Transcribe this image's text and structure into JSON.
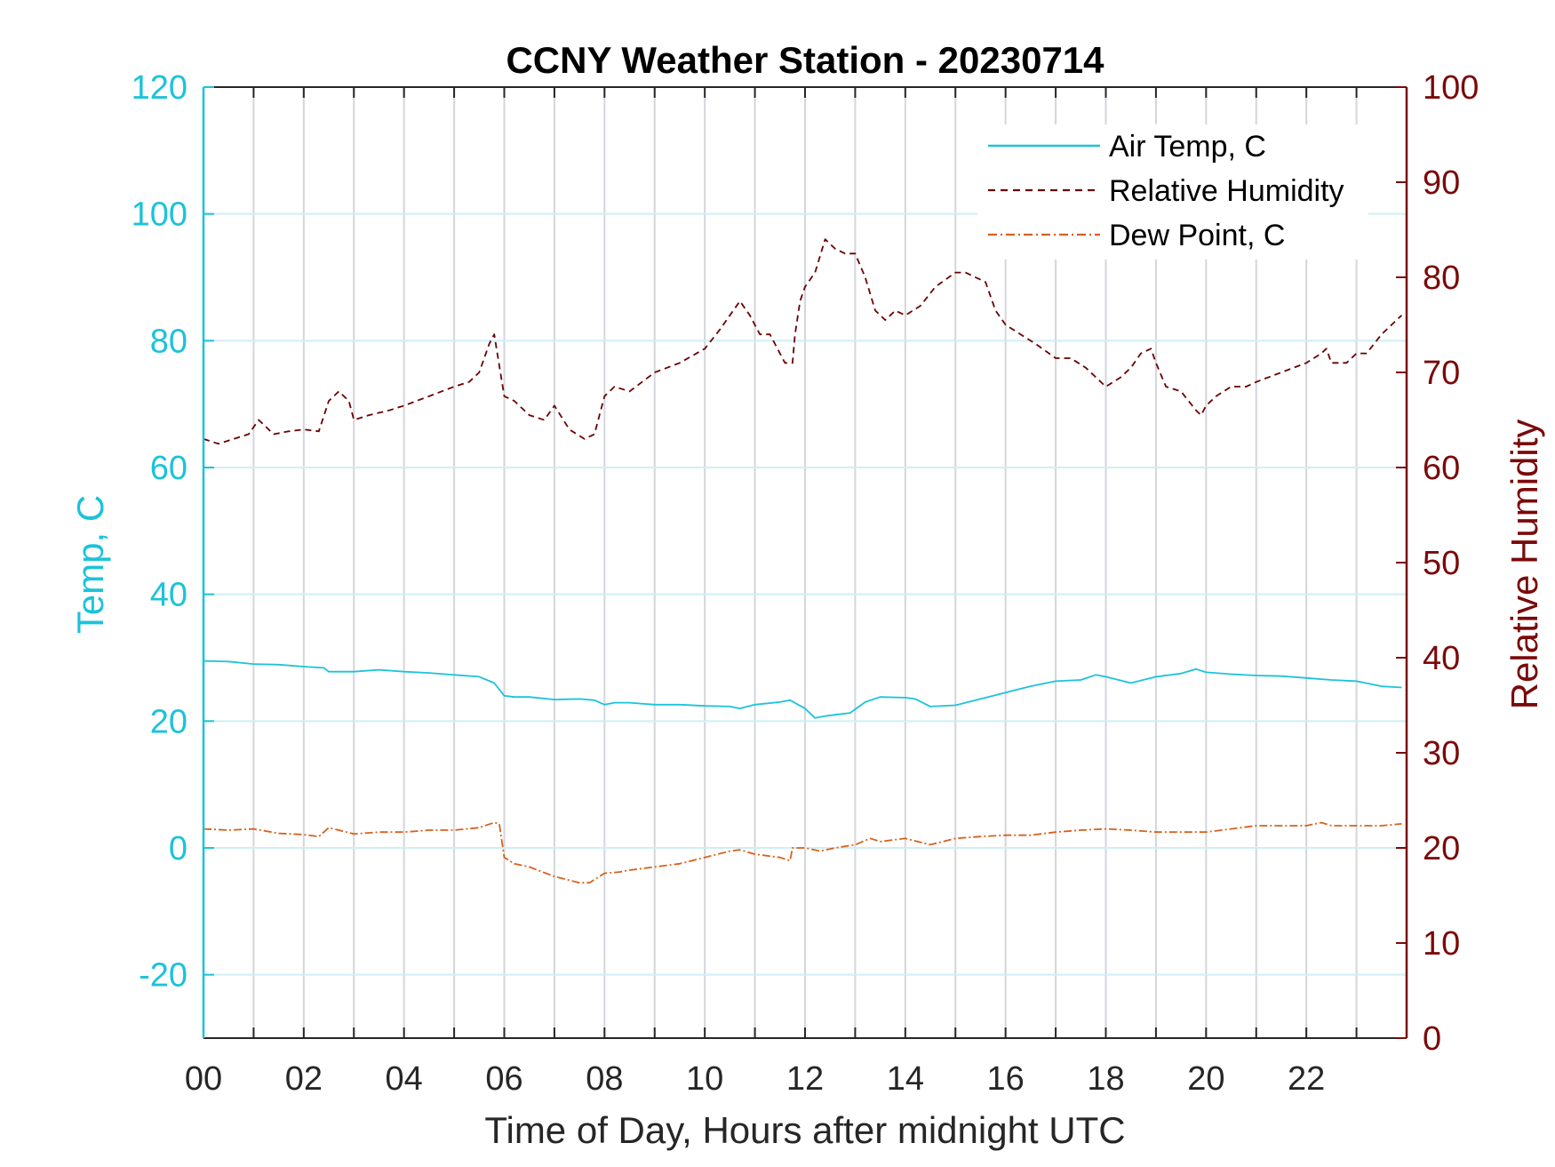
{
  "chart_data": {
    "type": "line",
    "title": "CCNY Weather Station - 20230714",
    "xlabel": "Time of Day, Hours after midnight UTC",
    "ylabel_left": "Temp, C",
    "ylabel_right": "Relative Humidity",
    "xlim": [
      0,
      24
    ],
    "ylim_left": [
      -30,
      120
    ],
    "ylim_right": [
      0,
      100
    ],
    "x_ticks": [
      {
        "value": 0,
        "label": "00"
      },
      {
        "value": 2,
        "label": "02"
      },
      {
        "value": 4,
        "label": "04"
      },
      {
        "value": 6,
        "label": "06"
      },
      {
        "value": 8,
        "label": "08"
      },
      {
        "value": 10,
        "label": "10"
      },
      {
        "value": 12,
        "label": "12"
      },
      {
        "value": 14,
        "label": "14"
      },
      {
        "value": 16,
        "label": "16"
      },
      {
        "value": 18,
        "label": "18"
      },
      {
        "value": 20,
        "label": "20"
      },
      {
        "value": 22,
        "label": "22"
      }
    ],
    "y_ticks_left": [
      {
        "value": -20,
        "label": "-20"
      },
      {
        "value": 0,
        "label": "0"
      },
      {
        "value": 20,
        "label": "20"
      },
      {
        "value": 40,
        "label": "40"
      },
      {
        "value": 60,
        "label": "60"
      },
      {
        "value": 80,
        "label": "80"
      },
      {
        "value": 100,
        "label": "100"
      },
      {
        "value": 120,
        "label": "120"
      }
    ],
    "y_ticks_right": [
      {
        "value": 0,
        "label": "0"
      },
      {
        "value": 10,
        "label": "10"
      },
      {
        "value": 20,
        "label": "20"
      },
      {
        "value": 30,
        "label": "30"
      },
      {
        "value": 40,
        "label": "40"
      },
      {
        "value": 50,
        "label": "50"
      },
      {
        "value": 60,
        "label": "60"
      },
      {
        "value": 70,
        "label": "70"
      },
      {
        "value": 80,
        "label": "80"
      },
      {
        "value": 90,
        "label": "90"
      },
      {
        "value": 100,
        "label": "100"
      }
    ],
    "grid": true,
    "legend_position": "top-right",
    "colors": {
      "left_axis": "#1bc3d9",
      "right_axis": "#7a0a0a",
      "air_temp": "#1bc3d9",
      "relative_humidity": "#6b0000",
      "dew_point": "#d9601b",
      "vertical_grid": "#d3d6da",
      "horizontal_grid": "#cfeff5"
    },
    "series": [
      {
        "name": "Air Temp, C",
        "axis": "left",
        "style": "solid",
        "x": [
          0,
          0.5,
          1,
          1.5,
          2,
          2.4,
          2.5,
          3,
          3.5,
          4,
          4.5,
          5,
          5.5,
          5.8,
          6,
          6.2,
          6.5,
          7,
          7.5,
          7.8,
          8,
          8.2,
          8.5,
          9,
          9.5,
          10,
          10.5,
          10.7,
          11,
          11.5,
          11.7,
          12,
          12.2,
          12.4,
          12.6,
          12.9,
          13.2,
          13.5,
          14,
          14.2,
          14.5,
          15,
          15.5,
          16,
          16.5,
          17,
          17.5,
          17.8,
          18,
          18.5,
          19,
          19.5,
          19.8,
          20,
          20.5,
          21,
          21.5,
          22,
          22.5,
          23,
          23.5,
          23.9
        ],
        "values": [
          29.5,
          29.4,
          29,
          28.9,
          28.6,
          28.4,
          27.8,
          27.8,
          28.1,
          27.8,
          27.6,
          27.3,
          27,
          26,
          24,
          23.8,
          23.8,
          23.4,
          23.5,
          23.3,
          22.6,
          22.9,
          22.9,
          22.6,
          22.6,
          22.4,
          22.3,
          22,
          22.6,
          23,
          23.3,
          22,
          20.5,
          20.8,
          21,
          21.3,
          23,
          23.8,
          23.7,
          23.5,
          22.3,
          22.5,
          23.5,
          24.5,
          25.5,
          26.3,
          26.5,
          27.3,
          27,
          26,
          27,
          27.5,
          28.2,
          27.7,
          27.4,
          27.2,
          27.1,
          26.8,
          26.5,
          26.3,
          25.5,
          25.3
        ]
      },
      {
        "name": "Relative Humidity",
        "axis": "right",
        "style": "dashed",
        "x": [
          0,
          0.3,
          0.6,
          0.9,
          1.1,
          1.4,
          1.7,
          2,
          2.3,
          2.5,
          2.7,
          2.9,
          3,
          3.3,
          3.7,
          4,
          4.5,
          5,
          5.3,
          5.5,
          5.7,
          5.8,
          6,
          6.2,
          6.5,
          6.8,
          7,
          7.3,
          7.6,
          7.8,
          8,
          8.2,
          8.5,
          9,
          9.5,
          10,
          10.3,
          10.5,
          10.7,
          10.9,
          11.1,
          11.3,
          11.6,
          11.75,
          11.8,
          11.9,
          12,
          12.2,
          12.4,
          12.6,
          12.8,
          13,
          13.2,
          13.4,
          13.6,
          13.8,
          14,
          14.3,
          14.6,
          15,
          15.2,
          15.4,
          15.6,
          15.8,
          16,
          16.3,
          16.6,
          17,
          17.3,
          17.6,
          17.8,
          18,
          18.3,
          18.5,
          18.7,
          18.9,
          19,
          19.2,
          19.5,
          19.8,
          19.9,
          20,
          20.2,
          20.5,
          20.8,
          21,
          21.5,
          22,
          22.3,
          22.4,
          22.5,
          22.8,
          23,
          23.2,
          23.5,
          23.8,
          23.9
        ],
        "values": [
          63,
          62.5,
          63,
          63.5,
          65,
          63.5,
          63.8,
          64,
          63.8,
          67,
          68,
          67,
          65,
          65.5,
          66,
          66.5,
          67.5,
          68.5,
          69,
          70,
          73,
          74,
          67.5,
          67,
          65.5,
          65,
          66.5,
          64,
          63,
          63.5,
          67.5,
          68.5,
          68,
          70,
          71,
          72.5,
          74.5,
          76,
          77.5,
          76,
          74,
          74,
          71,
          71,
          74,
          77.5,
          79,
          80.5,
          84,
          83,
          82.5,
          82.5,
          80,
          76.5,
          75.5,
          76.5,
          76,
          77,
          79,
          80.5,
          80.5,
          80,
          79.5,
          76.5,
          75,
          74,
          73,
          71.5,
          71.5,
          70.5,
          69.5,
          68.5,
          69.5,
          70.5,
          72,
          72.5,
          71,
          68.5,
          68,
          66,
          65.5,
          66.5,
          67.5,
          68.5,
          68.5,
          69,
          70,
          71,
          72,
          72.5,
          71,
          71,
          72,
          72,
          74,
          75.5,
          76
        ]
      },
      {
        "name": "Dew Point, C",
        "axis": "left",
        "style": "dashdot",
        "x": [
          0,
          0.5,
          1,
          1.5,
          2,
          2.3,
          2.5,
          3,
          3.5,
          4,
          4.5,
          5,
          5.5,
          5.8,
          5.9,
          6,
          6.2,
          6.5,
          7,
          7.5,
          7.7,
          8,
          8.3,
          8.5,
          9,
          9.5,
          10,
          10.5,
          10.7,
          11,
          11.5,
          11.7,
          11.75,
          12,
          12.3,
          12.6,
          13,
          13.3,
          13.5,
          14,
          14.5,
          15,
          15.5,
          16,
          16.5,
          17,
          17.5,
          18,
          18.5,
          19,
          19.5,
          20,
          20.5,
          21,
          21.5,
          22,
          22.3,
          22.5,
          23,
          23.5,
          23.9
        ],
        "values": [
          3,
          2.8,
          3,
          2.3,
          2.1,
          1.8,
          3.2,
          2.2,
          2.5,
          2.5,
          2.8,
          2.8,
          3.2,
          4,
          3.8,
          -1.5,
          -2.5,
          -3,
          -4.5,
          -5.5,
          -5.5,
          -4,
          -3.8,
          -3.5,
          -3,
          -2.5,
          -1.5,
          -0.5,
          -0.3,
          -1,
          -1.5,
          -2,
          0,
          0,
          -0.5,
          0,
          0.5,
          1.5,
          1,
          1.5,
          0.5,
          1.5,
          1.8,
          2,
          2,
          2.5,
          2.8,
          3,
          2.8,
          2.5,
          2.5,
          2.5,
          3,
          3.5,
          3.5,
          3.5,
          4,
          3.5,
          3.5,
          3.5,
          3.8
        ]
      }
    ]
  }
}
